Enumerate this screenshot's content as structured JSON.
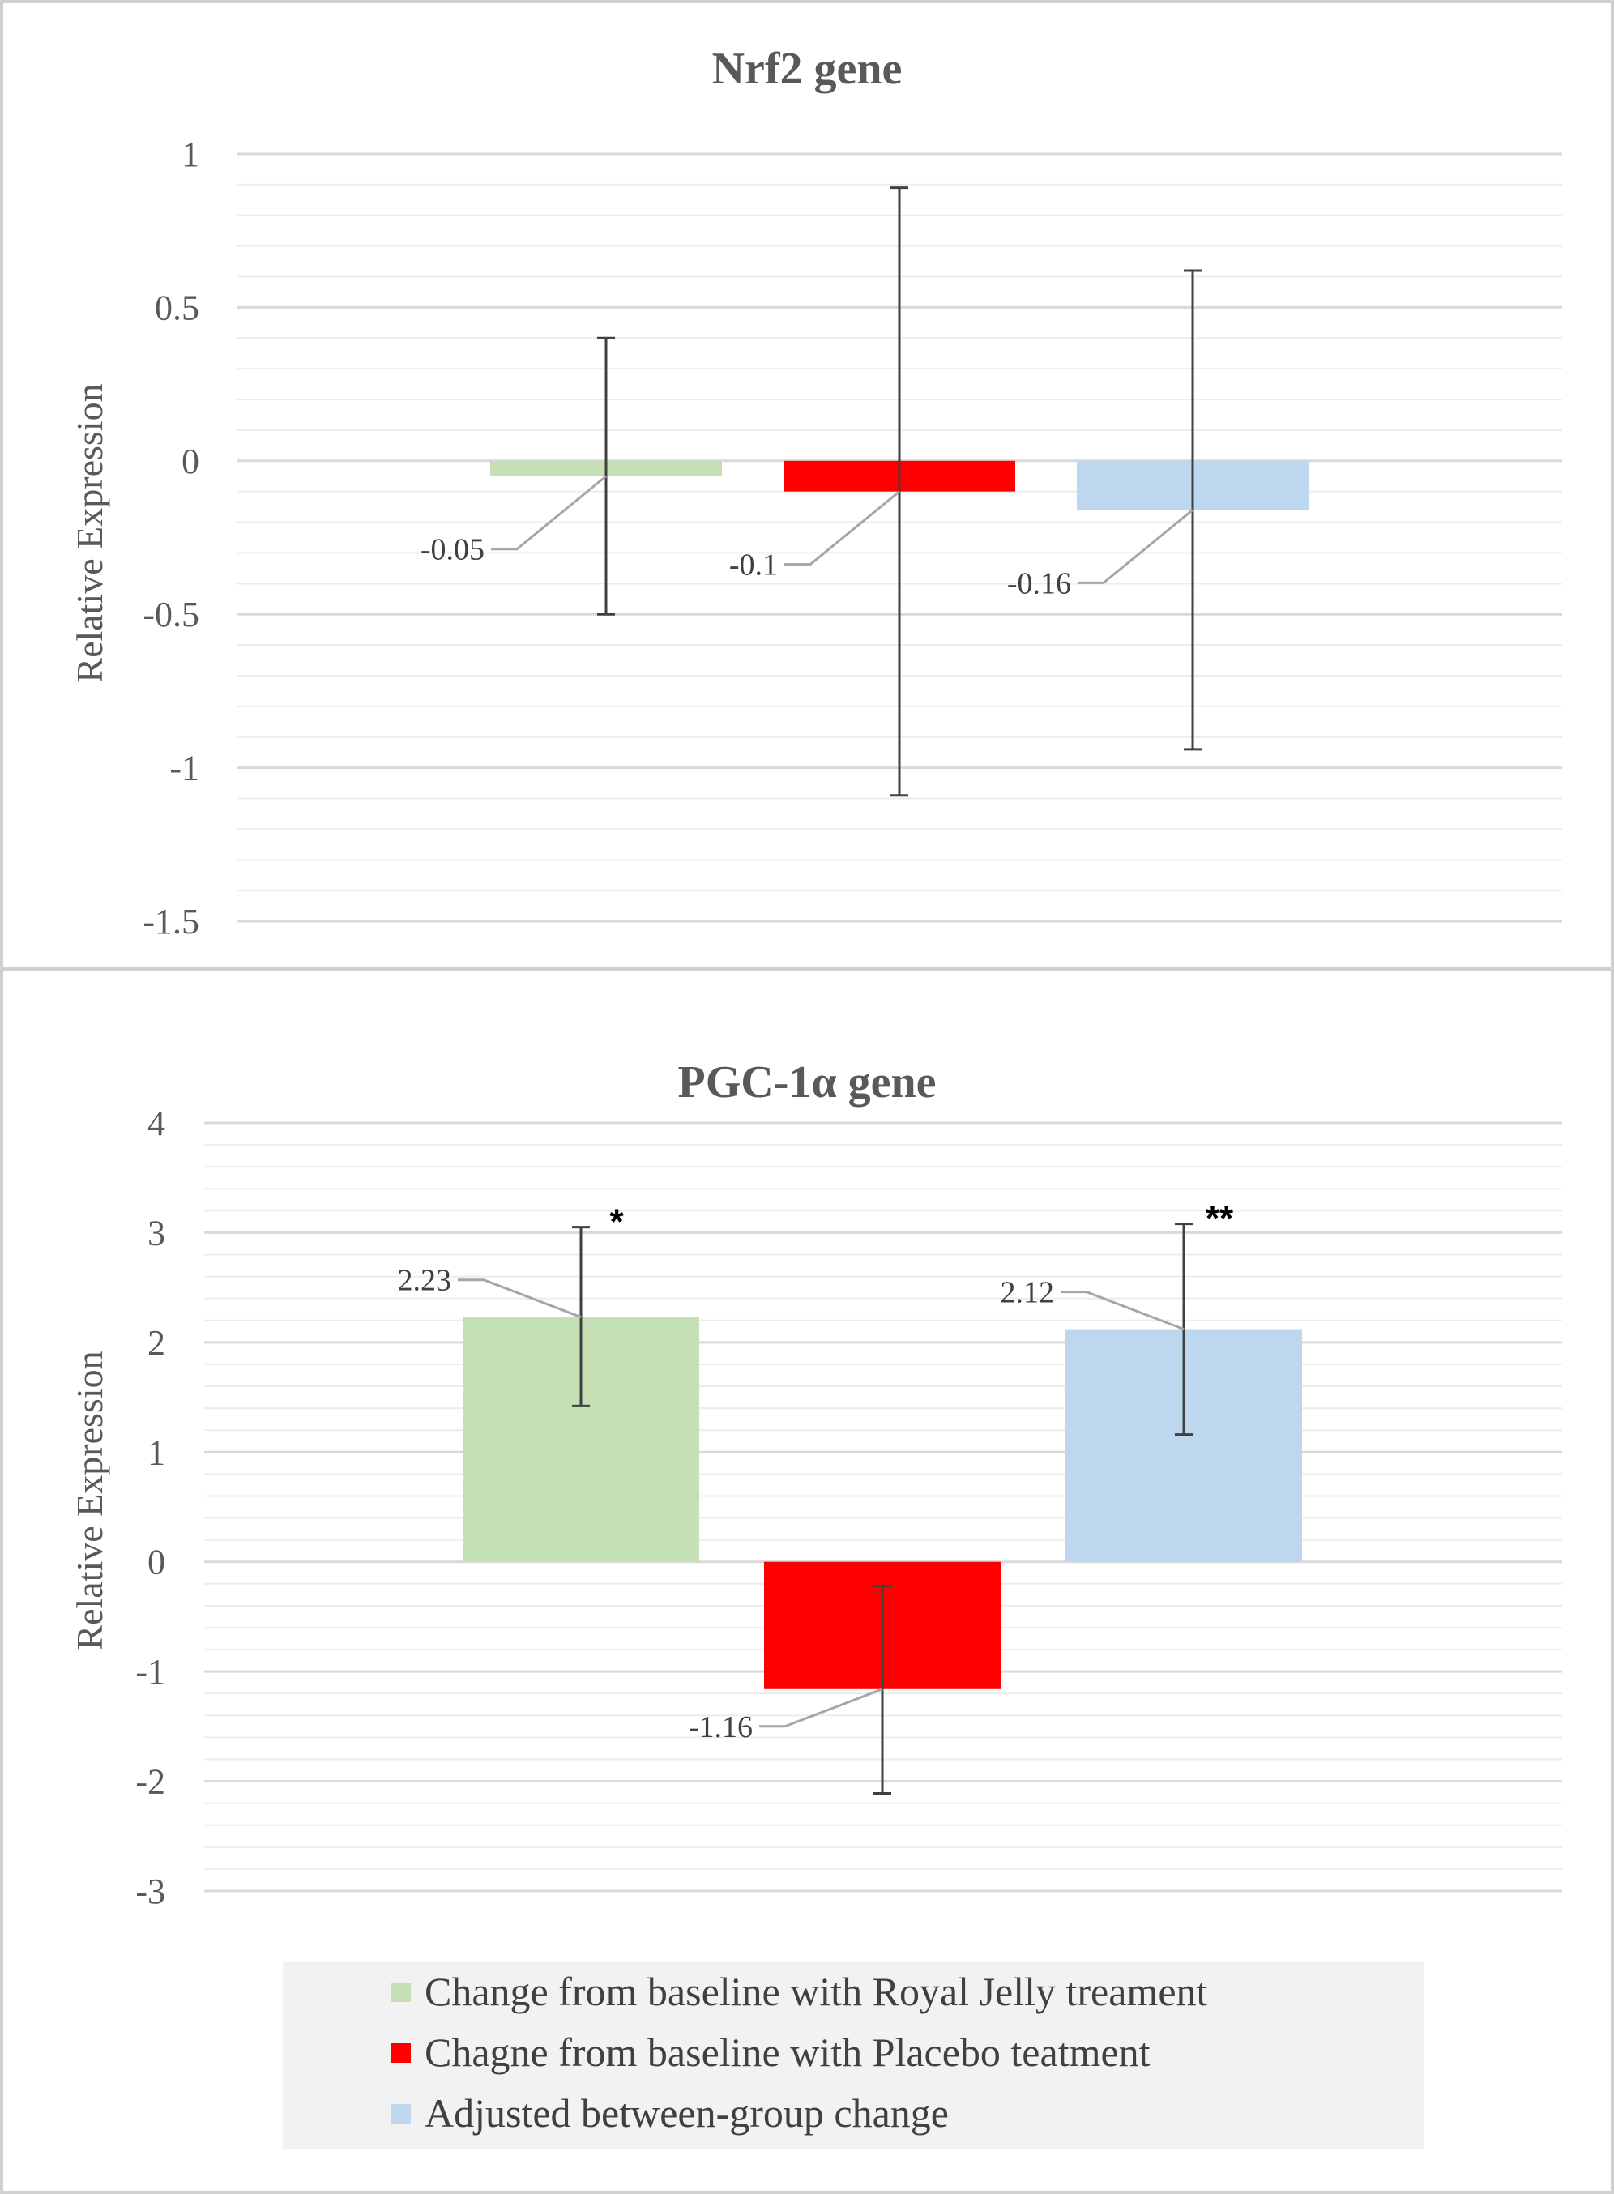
{
  "chart_data": [
    {
      "type": "bar",
      "title": "Nrf2 gene",
      "ylabel": "Relative Expression",
      "xlabel": "",
      "ylim": [
        -1.5,
        1
      ],
      "ytick_values": [
        1,
        0.5,
        0,
        -0.5,
        -1,
        -1.5
      ],
      "ytick_labels": [
        "1",
        "0.5",
        "0",
        "-0.5",
        "-1",
        "-1.5"
      ],
      "minor_step": 0.1,
      "grid": true,
      "series": [
        {
          "name": "Change from baseline with Royal Jelly treament",
          "value": -0.05,
          "label": "-0.05",
          "err_low": -0.5,
          "err_high": 0.4,
          "color": "#c5e0b4",
          "sig": ""
        },
        {
          "name": "Chagne from baseline with Placebo teatment",
          "value": -0.1,
          "label": "-0.1",
          "err_low": -1.09,
          "err_high": 0.89,
          "color": "#ff0000",
          "sig": ""
        },
        {
          "name": "Adjusted between-group change",
          "value": -0.16,
          "label": "-0.16",
          "err_low": -0.94,
          "err_high": 0.62,
          "color": "#bdd7ee",
          "sig": ""
        }
      ]
    },
    {
      "type": "bar",
      "title": "PGC-1α gene",
      "ylabel": "Relative Expression",
      "xlabel": "",
      "ylim": [
        -3,
        4
      ],
      "ytick_values": [
        4,
        3,
        2,
        1,
        0,
        -1,
        -2,
        -3
      ],
      "ytick_labels": [
        "4",
        "3",
        "2",
        "1",
        "0",
        "-1",
        "-2",
        "-3"
      ],
      "minor_step": 0.2,
      "grid": true,
      "series": [
        {
          "name": "Change from baseline with Royal Jelly treament",
          "value": 2.23,
          "label": "2.23",
          "err_low": 1.42,
          "err_high": 3.05,
          "color": "#c5e0b4",
          "sig": "*"
        },
        {
          "name": "Chagne from baseline with Placebo teatment",
          "value": -1.16,
          "label": "-1.16",
          "err_low": -2.11,
          "err_high": -0.22,
          "color": "#ff0000",
          "sig": ""
        },
        {
          "name": "Adjusted between-group change",
          "value": 2.12,
          "label": "2.12",
          "err_low": 1.16,
          "err_high": 3.08,
          "color": "#bdd7ee",
          "sig": "**"
        }
      ]
    }
  ],
  "legend": {
    "position": "bottom",
    "items": [
      {
        "label": "Change from baseline with Royal Jelly treament",
        "color": "#c5e0b4"
      },
      {
        "label": "Chagne from baseline with Placebo teatment",
        "color": "#ff0000"
      },
      {
        "label": "Adjusted between-group change",
        "color": "#bdd7ee"
      }
    ]
  }
}
